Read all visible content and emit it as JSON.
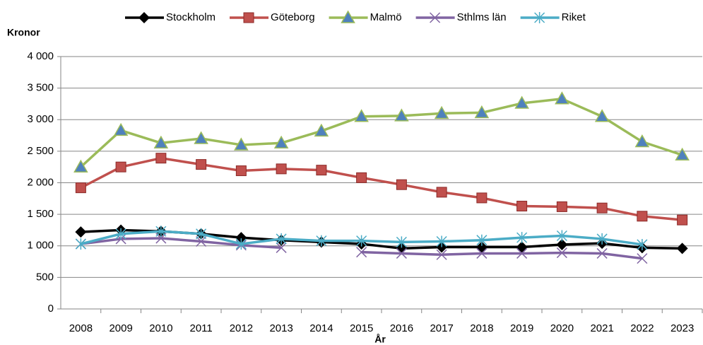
{
  "chart_data": {
    "type": "line",
    "y_label": "Kronor",
    "x_label": "År",
    "categories": [
      "2008",
      "2009",
      "2010",
      "2011",
      "2012",
      "2013",
      "2014",
      "2015",
      "2016",
      "2017",
      "2018",
      "2019",
      "2020",
      "2021",
      "2022",
      "2023"
    ],
    "series": [
      {
        "name": "Stockholm",
        "color": "#000000",
        "marker": "diamond",
        "values": [
          1220,
          1250,
          1230,
          1190,
          1130,
          1090,
          1060,
          1030,
          960,
          980,
          980,
          980,
          1020,
          1040,
          970,
          960
        ]
      },
      {
        "name": "Göteborg",
        "color": "#c0504d",
        "marker": "square",
        "values": [
          1920,
          2250,
          2390,
          2290,
          2190,
          2220,
          2200,
          2080,
          1970,
          1850,
          1760,
          1630,
          1620,
          1600,
          1470,
          1410
        ]
      },
      {
        "name": "Malmö",
        "color": "#9bbb59",
        "marker": "triangle",
        "values": [
          2250,
          2830,
          2630,
          2700,
          2600,
          2630,
          2820,
          3050,
          3060,
          3100,
          3110,
          3260,
          3330,
          3050,
          2650,
          2440
        ]
      },
      {
        "name": "Sthlms län",
        "color": "#8064a2",
        "marker": "x",
        "values": [
          1030,
          1110,
          1120,
          1070,
          1010,
          970,
          null,
          900,
          880,
          860,
          880,
          880,
          890,
          880,
          800,
          null
        ]
      },
      {
        "name": "Riket",
        "color": "#4bacc6",
        "marker": "star",
        "values": [
          1030,
          1190,
          1230,
          1190,
          1030,
          1110,
          1080,
          1080,
          1060,
          1070,
          1090,
          1130,
          1160,
          1110,
          1020,
          null
        ]
      }
    ],
    "ylim": [
      0,
      4000
    ],
    "yticks": [
      0,
      500,
      {
        "value": 1000,
        "label": "1 000"
      },
      {
        "value": 1500,
        "label": "1 500"
      },
      {
        "value": 2000,
        "label": "2 000"
      },
      {
        "value": 2500,
        "label": "2 500"
      },
      {
        "value": 3000,
        "label": "3 000"
      },
      {
        "value": 3500,
        "label": "3 500"
      },
      {
        "value": 4000,
        "label": "4 000"
      }
    ],
    "grid": true,
    "legend": "top"
  }
}
